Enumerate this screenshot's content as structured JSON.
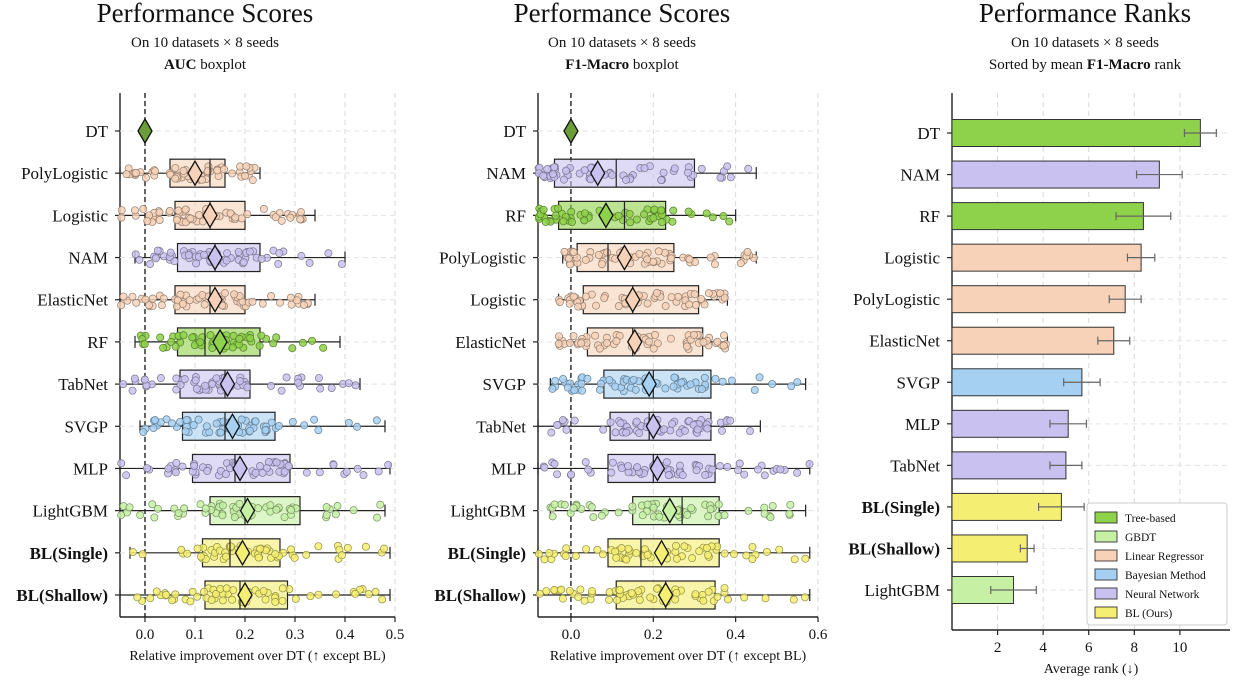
{
  "colors": {
    "Tree-based": "#8ed14a",
    "GBDT": "#c6f0a4",
    "Linear Regressor": "#f7d2b8",
    "Bayesian Method": "#a6d0f2",
    "Neural Network": "#c9c1ef",
    "BL (Ours)": "#f4ef72"
  },
  "chart_data": [
    {
      "type": "boxplot",
      "title": "Performance Scores",
      "subtitle": "On 10 datasets × 8 seeds",
      "subtitle2_bold": "AUC",
      "subtitle2_rest": " boxplot",
      "xlabel": "Relative improvement over DT (↑ except BL)",
      "xlim": [
        -0.05,
        0.5
      ],
      "xticks": [
        "0.0",
        "0.1",
        "0.2",
        "0.3",
        "0.4",
        "0.5"
      ],
      "xtick_values": [
        0,
        0.1,
        0.2,
        0.3,
        0.4,
        0.5
      ],
      "grid": true,
      "reference_line": 0,
      "rows": [
        {
          "label": "DT",
          "group": "Tree-based",
          "bold": false,
          "whisker_low": 0,
          "q1": 0,
          "median": 0,
          "q3": 0,
          "whisker_high": 0,
          "mean": 0
        },
        {
          "label": "PolyLogistic",
          "group": "Linear Regressor",
          "bold": false,
          "whisker_low": -0.05,
          "q1": 0.05,
          "median": 0.13,
          "q3": 0.16,
          "whisker_high": 0.23,
          "mean": 0.1
        },
        {
          "label": "Logistic",
          "group": "Linear Regressor",
          "bold": false,
          "whisker_low": -0.05,
          "q1": 0.06,
          "median": 0.13,
          "q3": 0.2,
          "whisker_high": 0.34,
          "mean": 0.13
        },
        {
          "label": "NAM",
          "group": "Neural Network",
          "bold": false,
          "whisker_low": -0.02,
          "q1": 0.065,
          "median": 0.14,
          "q3": 0.23,
          "whisker_high": 0.4,
          "mean": 0.14
        },
        {
          "label": "ElasticNet",
          "group": "Linear Regressor",
          "bold": false,
          "whisker_low": -0.05,
          "q1": 0.06,
          "median": 0.13,
          "q3": 0.2,
          "whisker_high": 0.34,
          "mean": 0.14
        },
        {
          "label": "RF",
          "group": "Tree-based",
          "bold": false,
          "whisker_low": -0.02,
          "q1": 0.065,
          "median": 0.12,
          "q3": 0.23,
          "whisker_high": 0.39,
          "mean": 0.15
        },
        {
          "label": "TabNet",
          "group": "Neural Network",
          "bold": false,
          "whisker_low": -0.05,
          "q1": 0.07,
          "median": 0.16,
          "q3": 0.21,
          "whisker_high": 0.43,
          "mean": 0.165
        },
        {
          "label": "SVGP",
          "group": "Bayesian Method",
          "bold": false,
          "whisker_low": -0.01,
          "q1": 0.075,
          "median": 0.16,
          "q3": 0.26,
          "whisker_high": 0.48,
          "mean": 0.175
        },
        {
          "label": "MLP",
          "group": "Neural Network",
          "bold": false,
          "whisker_low": -0.05,
          "q1": 0.095,
          "median": 0.18,
          "q3": 0.29,
          "whisker_high": 0.49,
          "mean": 0.19
        },
        {
          "label": "LightGBM",
          "group": "GBDT",
          "bold": false,
          "whisker_low": -0.05,
          "q1": 0.13,
          "median": 0.2,
          "q3": 0.31,
          "whisker_high": 0.48,
          "mean": 0.205
        },
        {
          "label": "BL(Single)",
          "group": "BL (Ours)",
          "bold": true,
          "whisker_low": -0.03,
          "q1": 0.115,
          "median": 0.17,
          "q3": 0.27,
          "whisker_high": 0.49,
          "mean": 0.195
        },
        {
          "label": "BL(Shallow)",
          "group": "BL (Ours)",
          "bold": true,
          "whisker_low": -0.05,
          "q1": 0.12,
          "median": 0.19,
          "q3": 0.285,
          "whisker_high": 0.49,
          "mean": 0.2
        }
      ]
    },
    {
      "type": "boxplot",
      "title": "Performance Scores",
      "subtitle": "On 10 datasets × 8 seeds",
      "subtitle2_bold": "F1-Macro",
      "subtitle2_rest": " boxplot",
      "xlabel": "Relative improvement over DT (↑ except BL)",
      "xlim": [
        -0.08,
        0.6
      ],
      "xticks": [
        "0.0",
        "0.2",
        "0.4",
        "0.6"
      ],
      "xtick_values": [
        0,
        0.2,
        0.4,
        0.6
      ],
      "grid": true,
      "reference_line": 0,
      "rows": [
        {
          "label": "DT",
          "group": "Tree-based",
          "bold": false,
          "whisker_low": 0,
          "q1": 0,
          "median": 0,
          "q3": 0,
          "whisker_high": 0,
          "mean": 0
        },
        {
          "label": "NAM",
          "group": "Neural Network",
          "bold": false,
          "whisker_low": -0.08,
          "q1": -0.04,
          "median": 0.11,
          "q3": 0.3,
          "whisker_high": 0.45,
          "mean": 0.065
        },
        {
          "label": "RF",
          "group": "Tree-based",
          "bold": false,
          "whisker_low": -0.08,
          "q1": -0.03,
          "median": 0.13,
          "q3": 0.23,
          "whisker_high": 0.4,
          "mean": 0.085
        },
        {
          "label": "PolyLogistic",
          "group": "Linear Regressor",
          "bold": false,
          "whisker_low": -0.02,
          "q1": 0.015,
          "median": 0.09,
          "q3": 0.25,
          "whisker_high": 0.45,
          "mean": 0.13
        },
        {
          "label": "Logistic",
          "group": "Linear Regressor",
          "bold": false,
          "whisker_low": -0.03,
          "q1": 0.03,
          "median": 0.15,
          "q3": 0.31,
          "whisker_high": 0.38,
          "mean": 0.15
        },
        {
          "label": "ElasticNet",
          "group": "Linear Regressor",
          "bold": false,
          "whisker_low": -0.03,
          "q1": 0.04,
          "median": 0.15,
          "q3": 0.32,
          "whisker_high": 0.38,
          "mean": 0.155
        },
        {
          "label": "SVGP",
          "group": "Bayesian Method",
          "bold": false,
          "whisker_low": -0.05,
          "q1": 0.08,
          "median": 0.2,
          "q3": 0.34,
          "whisker_high": 0.57,
          "mean": 0.19
        },
        {
          "label": "TabNet",
          "group": "Neural Network",
          "bold": false,
          "whisker_low": -0.08,
          "q1": 0.095,
          "median": 0.19,
          "q3": 0.34,
          "whisker_high": 0.46,
          "mean": 0.2
        },
        {
          "label": "MLP",
          "group": "Neural Network",
          "bold": false,
          "whisker_low": -0.08,
          "q1": 0.09,
          "median": 0.2,
          "q3": 0.35,
          "whisker_high": 0.58,
          "mean": 0.21
        },
        {
          "label": "LightGBM",
          "group": "GBDT",
          "bold": false,
          "whisker_low": -0.05,
          "q1": 0.15,
          "median": 0.27,
          "q3": 0.36,
          "whisker_high": 0.57,
          "mean": 0.24
        },
        {
          "label": "BL(Single)",
          "group": "BL (Ours)",
          "bold": true,
          "whisker_low": -0.08,
          "q1": 0.09,
          "median": 0.17,
          "q3": 0.36,
          "whisker_high": 0.58,
          "mean": 0.22
        },
        {
          "label": "BL(Shallow)",
          "group": "BL (Ours)",
          "bold": true,
          "whisker_low": -0.08,
          "q1": 0.11,
          "median": 0.23,
          "q3": 0.35,
          "whisker_high": 0.58,
          "mean": 0.23
        }
      ]
    },
    {
      "type": "bar",
      "orientation": "horizontal",
      "title": "Performance Ranks",
      "subtitle": "On 10 datasets × 8 seeds",
      "subtitle2_pre": "Sorted by mean ",
      "subtitle2_bold": "F1-Macro",
      "subtitle2_rest": " rank",
      "xlabel": "Average rank (↓)",
      "xlim": [
        0,
        12.2
      ],
      "xticks": [
        "2",
        "4",
        "6",
        "8",
        "10"
      ],
      "xtick_values": [
        2,
        4,
        6,
        8,
        10
      ],
      "grid": true,
      "legend_position": "bottom-right",
      "legend": [
        "Tree-based",
        "GBDT",
        "Linear Regressor",
        "Bayesian Method",
        "Neural Network",
        "BL (Ours)"
      ],
      "bars": [
        {
          "label": "DT",
          "group": "Tree-based",
          "bold": false,
          "value": 10.9,
          "err": 0.7
        },
        {
          "label": "NAM",
          "group": "Neural Network",
          "bold": false,
          "value": 9.1,
          "err": 1.0
        },
        {
          "label": "RF",
          "group": "Tree-based",
          "bold": false,
          "value": 8.4,
          "err": 1.2
        },
        {
          "label": "Logistic",
          "group": "Linear Regressor",
          "bold": false,
          "value": 8.3,
          "err": 0.6
        },
        {
          "label": "PolyLogistic",
          "group": "Linear Regressor",
          "bold": false,
          "value": 7.6,
          "err": 0.7
        },
        {
          "label": "ElasticNet",
          "group": "Linear Regressor",
          "bold": false,
          "value": 7.1,
          "err": 0.7
        },
        {
          "label": "SVGP",
          "group": "Bayesian Method",
          "bold": false,
          "value": 5.7,
          "err": 0.8
        },
        {
          "label": "MLP",
          "group": "Neural Network",
          "bold": false,
          "value": 5.1,
          "err": 0.8
        },
        {
          "label": "TabNet",
          "group": "Neural Network",
          "bold": false,
          "value": 5.0,
          "err": 0.7
        },
        {
          "label": "BL(Single)",
          "group": "BL (Ours)",
          "bold": true,
          "value": 4.8,
          "err": 1.0
        },
        {
          "label": "BL(Shallow)",
          "group": "BL (Ours)",
          "bold": true,
          "value": 3.3,
          "err": 0.3
        },
        {
          "label": "LightGBM",
          "group": "GBDT",
          "bold": false,
          "value": 2.7,
          "err": 1.0
        }
      ]
    }
  ]
}
